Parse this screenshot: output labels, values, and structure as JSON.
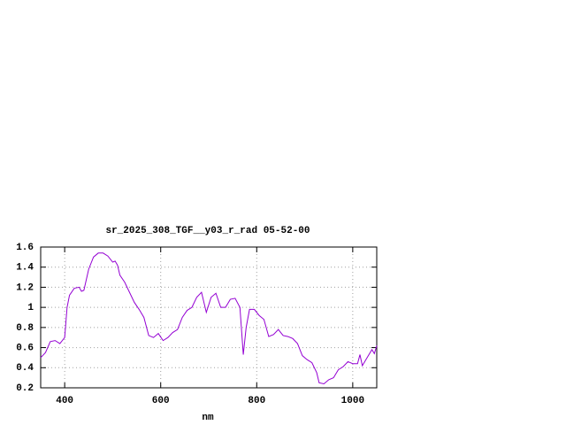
{
  "chart_data": {
    "type": "line",
    "title": "sr_2025_308_TGF__y03_r_rad 05-52-00",
    "x_label": "nm",
    "x": [
      350,
      360,
      370,
      380,
      390,
      400,
      405,
      410,
      420,
      430,
      435,
      440,
      450,
      460,
      470,
      480,
      490,
      500,
      505,
      510,
      515,
      525,
      535,
      545,
      555,
      565,
      575,
      585,
      595,
      605,
      615,
      625,
      635,
      645,
      655,
      665,
      675,
      685,
      695,
      705,
      715,
      725,
      735,
      745,
      755,
      765,
      772,
      778,
      785,
      795,
      805,
      815,
      825,
      835,
      845,
      855,
      865,
      875,
      885,
      895,
      905,
      915,
      925,
      930,
      940,
      950,
      960,
      970,
      980,
      990,
      1000,
      1010,
      1015,
      1020,
      1030,
      1040,
      1045,
      1050
    ],
    "values": [
      0.5,
      0.55,
      0.66,
      0.67,
      0.64,
      0.7,
      1.0,
      1.12,
      1.19,
      1.2,
      1.16,
      1.17,
      1.38,
      1.5,
      1.54,
      1.54,
      1.51,
      1.45,
      1.46,
      1.42,
      1.32,
      1.25,
      1.15,
      1.05,
      0.98,
      0.9,
      0.72,
      0.7,
      0.74,
      0.67,
      0.7,
      0.75,
      0.78,
      0.9,
      0.97,
      1.0,
      1.1,
      1.15,
      0.95,
      1.1,
      1.14,
      1.0,
      1.0,
      1.08,
      1.09,
      1.0,
      0.53,
      0.8,
      0.98,
      0.98,
      0.92,
      0.88,
      0.71,
      0.73,
      0.78,
      0.72,
      0.71,
      0.69,
      0.64,
      0.52,
      0.48,
      0.45,
      0.35,
      0.25,
      0.24,
      0.28,
      0.3,
      0.38,
      0.41,
      0.46,
      0.44,
      0.44,
      0.53,
      0.42,
      0.5,
      0.58,
      0.54,
      0.62
    ],
    "color": "#9400d3",
    "xlim": [
      350,
      1050
    ],
    "xticks": [
      400,
      600,
      800,
      1000
    ],
    "ylim": [
      0.2,
      1.6
    ],
    "yticks": [
      0.2,
      0.4,
      0.6,
      0.8,
      1,
      1.2,
      1.4,
      1.6
    ],
    "grid": true
  }
}
